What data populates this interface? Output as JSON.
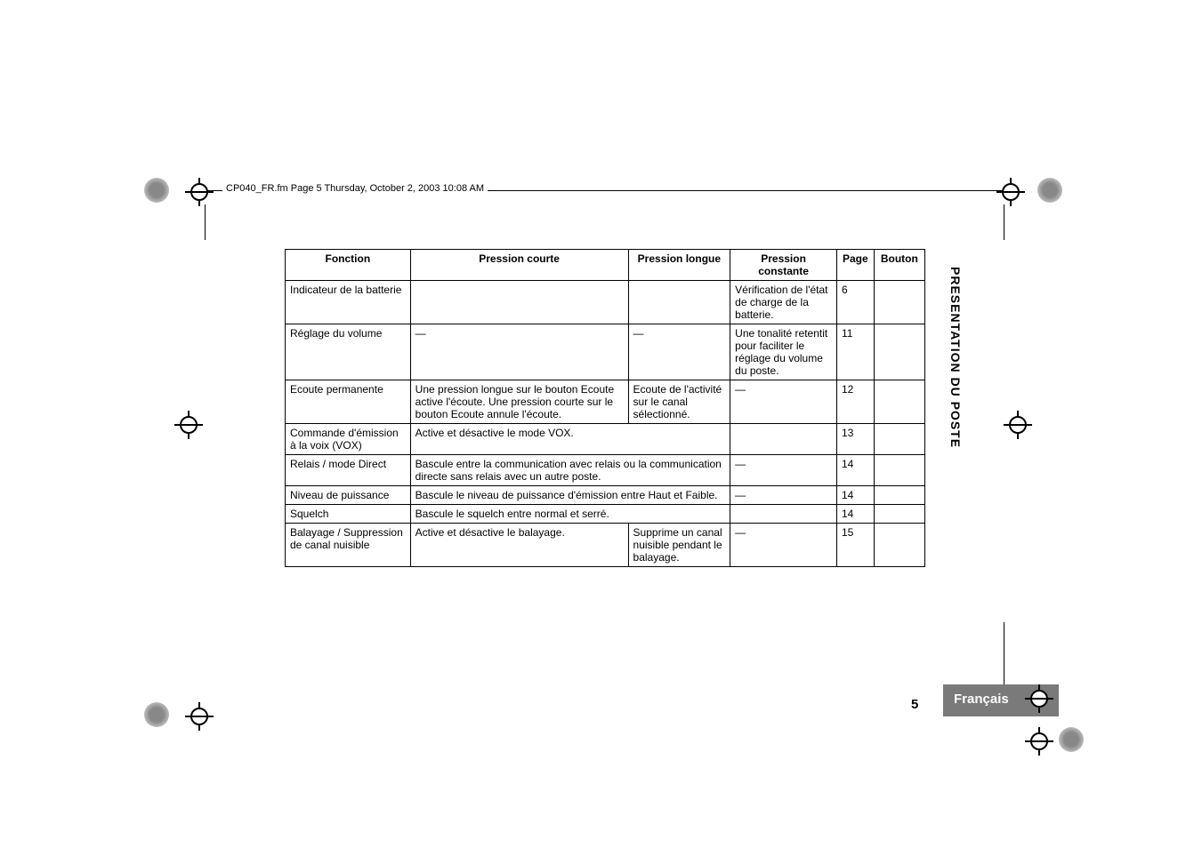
{
  "header_footer": {
    "running_head": "CP040_FR.fm  Page 5  Thursday, October 2, 2003  10:08 AM"
  },
  "table": {
    "headers": {
      "fonction": "Fonction",
      "courte": "Pression courte",
      "longue": "Pression longue",
      "constante": "Pression constante",
      "page": "Page",
      "bouton": "Bouton"
    },
    "rows": [
      {
        "fonction": "Indicateur de la batterie",
        "courte": "",
        "longue": "",
        "constante": "Vérification de l'état de charge de la batterie.",
        "page": "6",
        "bouton": "",
        "span": false
      },
      {
        "fonction": "Réglage du volume",
        "courte": "—",
        "longue": "—",
        "constante": "Une tonalité retentit pour faciliter le réglage du volume du poste.",
        "page": "11",
        "bouton": "",
        "span": false,
        "courte_center": true,
        "longue_center": true
      },
      {
        "fonction": "Ecoute permanente",
        "courte": "Une pression longue sur le bouton Ecoute active l'écoute. Une pression courte sur le bouton Ecoute annule l'écoute.",
        "longue": "Ecoute de l'activité sur le canal sélectionné.",
        "constante": "—",
        "page": "12",
        "bouton": "",
        "span": false,
        "constante_center": true
      },
      {
        "fonction": "Commande d'émission à la voix (VOX)",
        "courte_longue": "Active et désactive le mode VOX.",
        "constante": "",
        "page": "13",
        "bouton": "",
        "span": true
      },
      {
        "fonction": "Relais / mode Direct",
        "courte_longue": "Bascule entre la communication avec relais ou la communication directe sans relais avec un autre poste.",
        "constante": "—",
        "page": "14",
        "bouton": "",
        "span": true,
        "constante_center": true
      },
      {
        "fonction": "Niveau de puissance",
        "courte_longue": "Bascule le niveau de puissance d'émission entre Haut et Faible.",
        "constante": "—",
        "page": "14",
        "bouton": "",
        "span": true,
        "constante_center": true
      },
      {
        "fonction": "Squelch",
        "courte_longue": "Bascule le squelch entre normal et serré.",
        "constante": "",
        "page": "14",
        "bouton": "",
        "span": true
      },
      {
        "fonction": "Balayage / Suppression de canal nuisible",
        "courte": "Active et désactive le balayage.",
        "longue": "Supprime un canal nuisible pendant le balayage.",
        "constante": "—",
        "page": "15",
        "bouton": "",
        "span": false,
        "constante_center": true
      }
    ]
  },
  "sidebar": {
    "vertical_title": "PRESENTATION DU POSTE",
    "page_number": "5",
    "language": "Français"
  }
}
